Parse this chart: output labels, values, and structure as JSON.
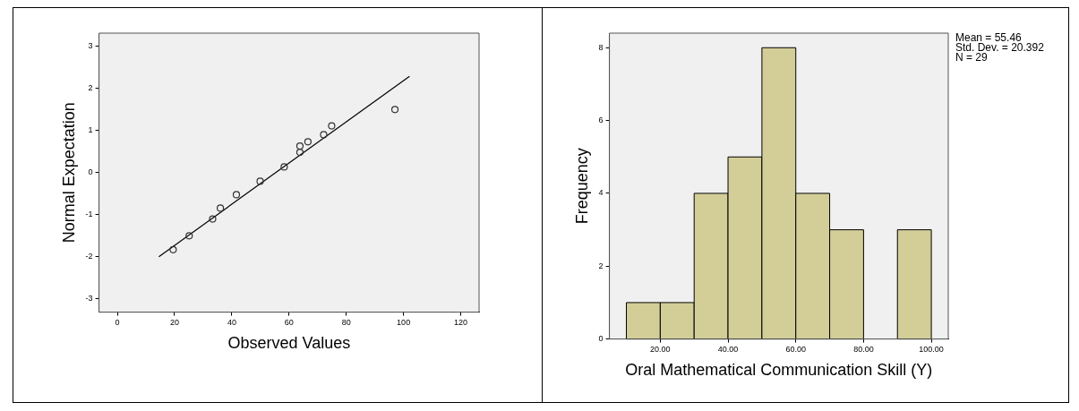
{
  "chart_data": [
    {
      "type": "scatter",
      "xlabel": "Observed Values",
      "ylabel": "Normal Expectation",
      "xlim": [
        -6.4,
        126.4
      ],
      "ylim": [
        -3.33,
        3.32
      ],
      "xticks": [
        0,
        20,
        40,
        60,
        80,
        100,
        120
      ],
      "yticks": [
        -3,
        -2,
        -1,
        0,
        1,
        2,
        3
      ],
      "series": [
        {
          "type": "scatter",
          "color": "#333333",
          "marker": "circle",
          "x": [
            19.5,
            25.1,
            33.3,
            36.0,
            41.6,
            49.9,
            58.3,
            63.8,
            63.8,
            66.6,
            72.1,
            74.9,
            97.0
          ],
          "values": [
            -1.84,
            -1.51,
            -1.11,
            -0.85,
            -0.53,
            -0.21,
            0.13,
            0.48,
            0.63,
            0.73,
            0.9,
            1.11,
            1.5
          ]
        },
        {
          "type": "line",
          "color": "#000000",
          "x": [
            14.5,
            102.1
          ],
          "values": [
            -2.01,
            2.29
          ]
        }
      ]
    },
    {
      "type": "histogram",
      "xlabel": "Oral Mathematical Communication Skill (Y)",
      "ylabel": "Frequency",
      "color": "#d3ce98",
      "bins": [
        10,
        20,
        30,
        40,
        50,
        60,
        70,
        80,
        90,
        100
      ],
      "values": [
        1,
        1,
        4,
        5,
        8,
        4,
        3,
        0,
        3
      ],
      "xlim": [
        5,
        105
      ],
      "ylim": [
        0,
        8.4
      ],
      "xticks": [
        {
          "value": 20,
          "label": "20.00"
        },
        {
          "value": 40,
          "label": "40.00"
        },
        {
          "value": 60,
          "label": "60.00"
        },
        {
          "value": 80,
          "label": "80.00"
        },
        {
          "value": 100,
          "label": "100.00"
        }
      ],
      "yticks": [
        0,
        2,
        4,
        6,
        8
      ],
      "annotations": [
        "Mean = 55.46",
        "Std. Dev. = 20.392",
        "N = 29"
      ]
    }
  ]
}
